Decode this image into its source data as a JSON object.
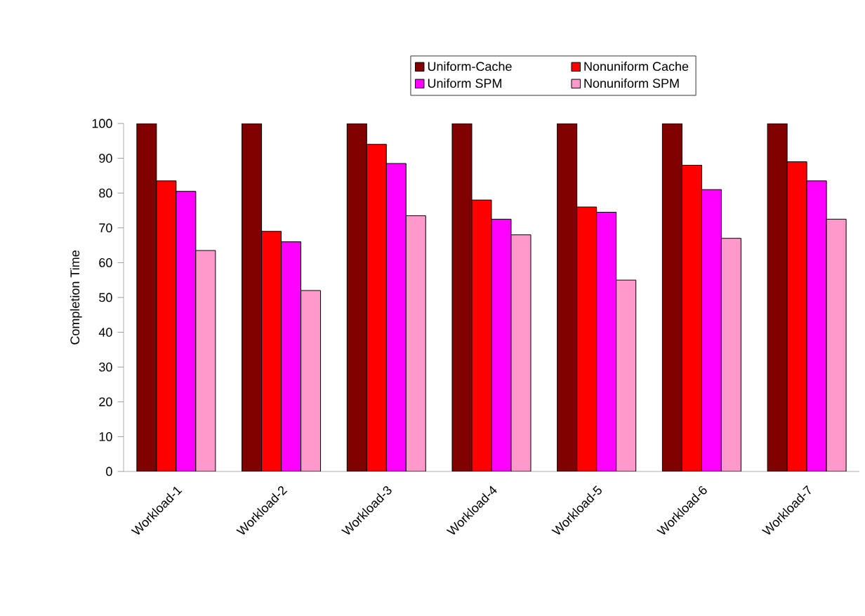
{
  "chart_data": {
    "type": "bar",
    "ylabel": "Completion Time",
    "categories": [
      "Workload-1",
      "Workload-2",
      "Workload-3",
      "Workload-4",
      "Workload-5",
      "Workload-6",
      "Workload-7"
    ],
    "series": [
      {
        "name": "Uniform-Cache",
        "color": "#800000",
        "values": [
          100,
          100,
          100,
          100,
          100,
          100,
          100
        ]
      },
      {
        "name": "Nonuniform Cache",
        "color": "#ff0000",
        "values": [
          83.5,
          69,
          94,
          78,
          76,
          88,
          89
        ]
      },
      {
        "name": "Uniform SPM",
        "color": "#ff00ff",
        "values": [
          80.5,
          66,
          88.5,
          72.5,
          74.5,
          81,
          83.5
        ]
      },
      {
        "name": "Nonuniform SPM",
        "color": "#ff99cc",
        "values": [
          63.5,
          52,
          73.5,
          68,
          55,
          67,
          72.5
        ]
      }
    ],
    "ylim": [
      0,
      100
    ],
    "yticks": [
      0,
      10,
      20,
      30,
      40,
      50,
      60,
      70,
      80,
      90,
      100
    ],
    "legend": "top",
    "grid": false
  }
}
